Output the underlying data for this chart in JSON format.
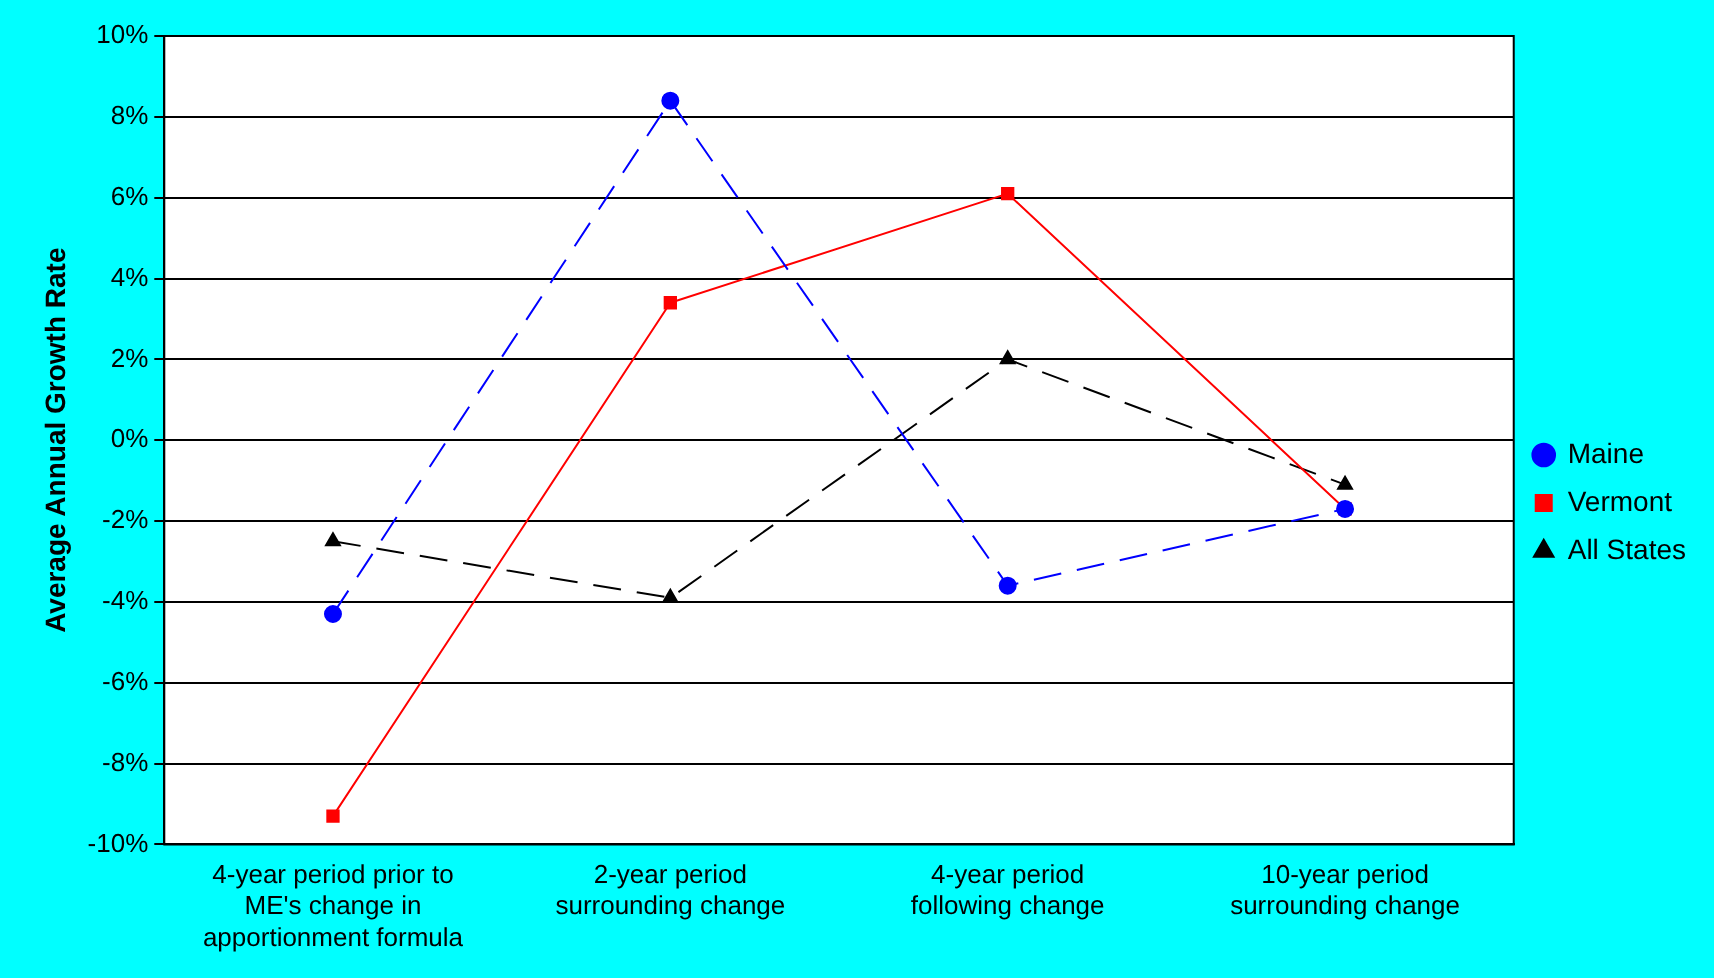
{
  "chart_data": {
    "type": "line",
    "ylabel": "Average Annual Growth Rate",
    "categories": [
      "4-year period prior to ME's change in apportionment formula",
      "2-year period surrounding change",
      "4-year period following change",
      "10-year period surrounding change"
    ],
    "series": [
      {
        "name": "Maine",
        "color": "#0000ff",
        "marker": "circle",
        "line_style": "dashed",
        "values": [
          -4.3,
          8.4,
          -3.6,
          -1.7
        ]
      },
      {
        "name": "Vermont",
        "color": "#ff0000",
        "marker": "square",
        "line_style": "solid",
        "values": [
          -9.3,
          3.4,
          6.1,
          -1.7
        ]
      },
      {
        "name": "All States",
        "color": "#000000",
        "marker": "triangle",
        "line_style": "dashed",
        "values": [
          -2.5,
          -3.9,
          2.0,
          -1.1
        ]
      }
    ],
    "ylim": [
      -10,
      10
    ],
    "yticks": [
      {
        "value": -10,
        "label": "-10%"
      },
      {
        "value": -8,
        "label": "-8%"
      },
      {
        "value": -6,
        "label": "-6%"
      },
      {
        "value": -4,
        "label": "-4%"
      },
      {
        "value": -2,
        "label": "-2%"
      },
      {
        "value": 0,
        "label": "0%"
      },
      {
        "value": 2,
        "label": "2%"
      },
      {
        "value": 4,
        "label": "4%"
      },
      {
        "value": 6,
        "label": "6%"
      },
      {
        "value": 8,
        "label": "8%"
      },
      {
        "value": 10,
        "label": "10%"
      }
    ],
    "grid": "y",
    "legend": "right"
  }
}
